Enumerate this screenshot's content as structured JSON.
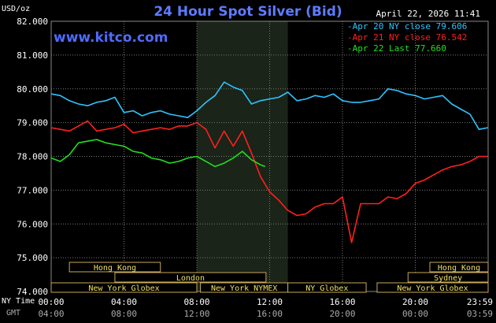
{
  "chart_data": {
    "type": "line",
    "title": "24 Hour Spot Silver (Bid)",
    "timestamp": "April 22, 2026 11:41",
    "watermark": "www.kitco.com",
    "ylabel": "USD/oz",
    "ylim": [
      74,
      82
    ],
    "yticks": [
      "82.000",
      "81.000",
      "80.000",
      "79.000",
      "78.000",
      "77.000",
      "76.000",
      "75.000",
      "74.000"
    ],
    "xlim": [
      0,
      24
    ],
    "ny_time_label": "NY Time",
    "gmt_label": "GMT",
    "xticks_ny": [
      "00:00",
      "04:00",
      "08:00",
      "12:00",
      "16:00",
      "20:00",
      "23:59"
    ],
    "xticks_gmt": [
      "04:00",
      "08:00",
      "12:00",
      "16:00",
      "20:00",
      "00:00",
      "03:59"
    ],
    "highlight_hours": [
      8,
      13
    ],
    "colors": {
      "title": "#5f7bff",
      "grid": "#7a7a7a",
      "shade": "#1a2418",
      "session_fill": "#000000",
      "session_border": "#c8a85a",
      "session_text": "#f0e060"
    },
    "series": [
      {
        "name": "Apr 20 NY close 79.606",
        "color": "#2ec4ff",
        "x": [
          0,
          0.5,
          1,
          1.5,
          2,
          2.5,
          3,
          3.5,
          4,
          4.5,
          5,
          5.5,
          6,
          6.5,
          7,
          7.5,
          8,
          8.5,
          9,
          9.5,
          10,
          10.5,
          11,
          11.5,
          12,
          12.5,
          13,
          13.5,
          14,
          14.5,
          15,
          15.5,
          16,
          16.5,
          17,
          17.5,
          18,
          18.5,
          19,
          19.5,
          20,
          20.5,
          21,
          21.5,
          22,
          22.5,
          23,
          23.5,
          23.98
        ],
        "y": [
          79.85,
          79.8,
          79.65,
          79.55,
          79.5,
          79.6,
          79.65,
          79.75,
          79.3,
          79.35,
          79.2,
          79.3,
          79.35,
          79.25,
          79.2,
          79.15,
          79.35,
          79.6,
          79.8,
          80.2,
          80.05,
          79.95,
          79.55,
          79.65,
          79.7,
          79.75,
          79.9,
          79.65,
          79.7,
          79.8,
          79.75,
          79.85,
          79.65,
          79.6,
          79.6,
          79.65,
          79.7,
          80.0,
          79.95,
          79.85,
          79.8,
          79.7,
          79.75,
          79.8,
          79.55,
          79.4,
          79.25,
          78.8,
          78.85
        ]
      },
      {
        "name": "Apr 21 NY close 76.542",
        "color": "#ff2020",
        "x": [
          0,
          0.5,
          1,
          1.5,
          2,
          2.5,
          3,
          3.5,
          4,
          4.5,
          5,
          5.5,
          6,
          6.5,
          7,
          7.5,
          8,
          8.5,
          9,
          9.5,
          10,
          10.5,
          11,
          11.5,
          12,
          12.5,
          13,
          13.5,
          14,
          14.5,
          15,
          15.5,
          16,
          16.5,
          17,
          17.5,
          18,
          18.5,
          19,
          19.5,
          20,
          20.5,
          21,
          21.5,
          22,
          22.5,
          23,
          23.5,
          23.98
        ],
        "y": [
          78.85,
          78.8,
          78.75,
          78.9,
          79.05,
          78.75,
          78.8,
          78.85,
          78.95,
          78.7,
          78.75,
          78.8,
          78.85,
          78.8,
          78.9,
          78.9,
          79.0,
          78.8,
          78.25,
          78.75,
          78.3,
          78.75,
          78.1,
          77.4,
          76.95,
          76.7,
          76.4,
          76.25,
          76.3,
          76.5,
          76.6,
          76.6,
          76.8,
          75.45,
          76.6,
          76.6,
          76.6,
          76.8,
          76.75,
          76.9,
          77.2,
          77.3,
          77.45,
          77.6,
          77.7,
          77.75,
          77.85,
          78.0,
          78.0
        ]
      },
      {
        "name": "Apr 22 Last 77.660",
        "color": "#20e020",
        "x": [
          0,
          0.5,
          1,
          1.5,
          2,
          2.5,
          3,
          3.5,
          4,
          4.5,
          5,
          5.5,
          6,
          6.5,
          7,
          7.5,
          8,
          8.5,
          9,
          9.5,
          10,
          10.5,
          11,
          11.5,
          11.75
        ],
        "y": [
          77.95,
          77.85,
          78.05,
          78.4,
          78.45,
          78.5,
          78.4,
          78.35,
          78.3,
          78.15,
          78.1,
          77.95,
          77.9,
          77.8,
          77.85,
          77.95,
          78.0,
          77.85,
          77.7,
          77.8,
          77.95,
          78.15,
          77.9,
          77.75,
          77.7
        ]
      }
    ]
  },
  "sessions": [
    {
      "name": "Hong Kong",
      "row": 0,
      "start": 1.0,
      "end": 6.0
    },
    {
      "name": "Hong Kong",
      "row": 0,
      "start": 20.8,
      "end": 24
    },
    {
      "name": "London",
      "row": 1,
      "start": 3.5,
      "end": 11.8
    },
    {
      "name": "Sydney",
      "row": 1,
      "start": 19.6,
      "end": 24
    },
    {
      "name": "New York Globex",
      "row": 2,
      "start": 0,
      "end": 8.0
    },
    {
      "name": "New York NYMEX",
      "row": 2,
      "start": 8.2,
      "end": 13.0
    },
    {
      "name": "NY Globex",
      "row": 2,
      "start": 13.0,
      "end": 17.3
    },
    {
      "name": "New York Globex",
      "row": 2,
      "start": 17.9,
      "end": 24
    }
  ]
}
